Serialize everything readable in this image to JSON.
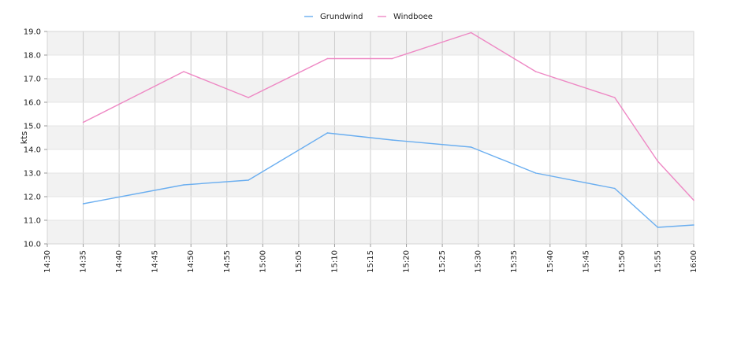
{
  "chart_data": {
    "type": "line",
    "title": "",
    "xlabel": "",
    "ylabel": "kts",
    "ylim": [
      10.0,
      19.0
    ],
    "xlim": [
      "14:30",
      "16:00"
    ],
    "grid": true,
    "legend_position": "top-center",
    "x_ticks": [
      "14:30",
      "14:35",
      "14:40",
      "14:45",
      "14:50",
      "14:55",
      "15:00",
      "15:05",
      "15:10",
      "15:15",
      "15:20",
      "15:25",
      "15:30",
      "15:35",
      "15:40",
      "15:45",
      "15:50",
      "15:55",
      "16:00"
    ],
    "y_ticks": [
      "10.0",
      "11.0",
      "12.0",
      "13.0",
      "14.0",
      "15.0",
      "16.0",
      "17.0",
      "18.0",
      "19.0"
    ],
    "series": [
      {
        "name": "Grundwind",
        "color": "#6aaef0",
        "x": [
          "14:35",
          "14:49",
          "14:58",
          "15:09",
          "15:18",
          "15:29",
          "15:38",
          "15:49",
          "15:55",
          "16:00"
        ],
        "values": [
          11.7,
          12.5,
          12.7,
          14.7,
          14.4,
          14.1,
          13.0,
          12.35,
          10.7,
          10.8
        ]
      },
      {
        "name": "Windboee",
        "color": "#ee88c4",
        "x": [
          "14:35",
          "14:49",
          "14:58",
          "15:09",
          "15:18",
          "15:29",
          "15:38",
          "15:49",
          "15:55",
          "16:00"
        ],
        "values": [
          15.15,
          17.3,
          16.2,
          17.85,
          17.85,
          18.95,
          17.3,
          16.2,
          13.5,
          11.85
        ]
      }
    ]
  }
}
